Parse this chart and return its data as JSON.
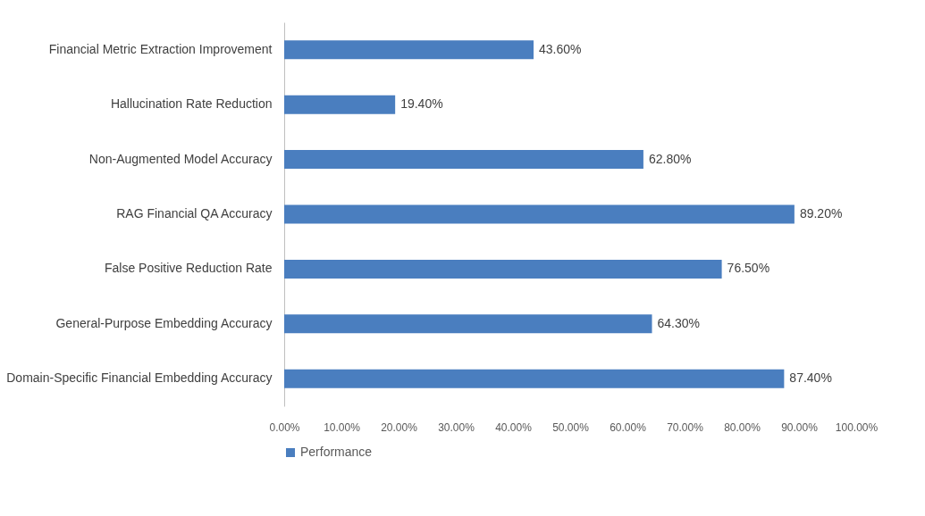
{
  "chart_data": {
    "type": "bar",
    "orientation": "horizontal",
    "categories": [
      "Financial Metric Extraction Improvement",
      "Hallucination Rate Reduction",
      "Non-Augmented Model Accuracy",
      "RAG Financial QA Accuracy",
      "False Positive Reduction Rate",
      "General-Purpose Embedding Accuracy",
      "Domain-Specific Financial Embedding Accuracy"
    ],
    "series": [
      {
        "name": "Performance",
        "color": "#4a7ebf",
        "values": [
          43.6,
          19.4,
          62.8,
          89.2,
          76.5,
          64.3,
          87.4
        ],
        "value_labels": [
          "43.60%",
          "19.40%",
          "62.80%",
          "89.20%",
          "76.50%",
          "64.30%",
          "87.40%"
        ]
      }
    ],
    "xlim": [
      0,
      100
    ],
    "xticks": [
      {
        "value": 0,
        "label": "0.00%"
      },
      {
        "value": 10,
        "label": "10.00%"
      },
      {
        "value": 20,
        "label": "20.00%"
      },
      {
        "value": 30,
        "label": "30.00%"
      },
      {
        "value": 40,
        "label": "40.00%"
      },
      {
        "value": 50,
        "label": "50.00%"
      },
      {
        "value": 60,
        "label": "60.00%"
      },
      {
        "value": 70,
        "label": "70.00%"
      },
      {
        "value": 80,
        "label": "80.00%"
      },
      {
        "value": 90,
        "label": "90.00%"
      },
      {
        "value": 100,
        "label": "100.00%"
      }
    ],
    "legend": "bottom"
  }
}
